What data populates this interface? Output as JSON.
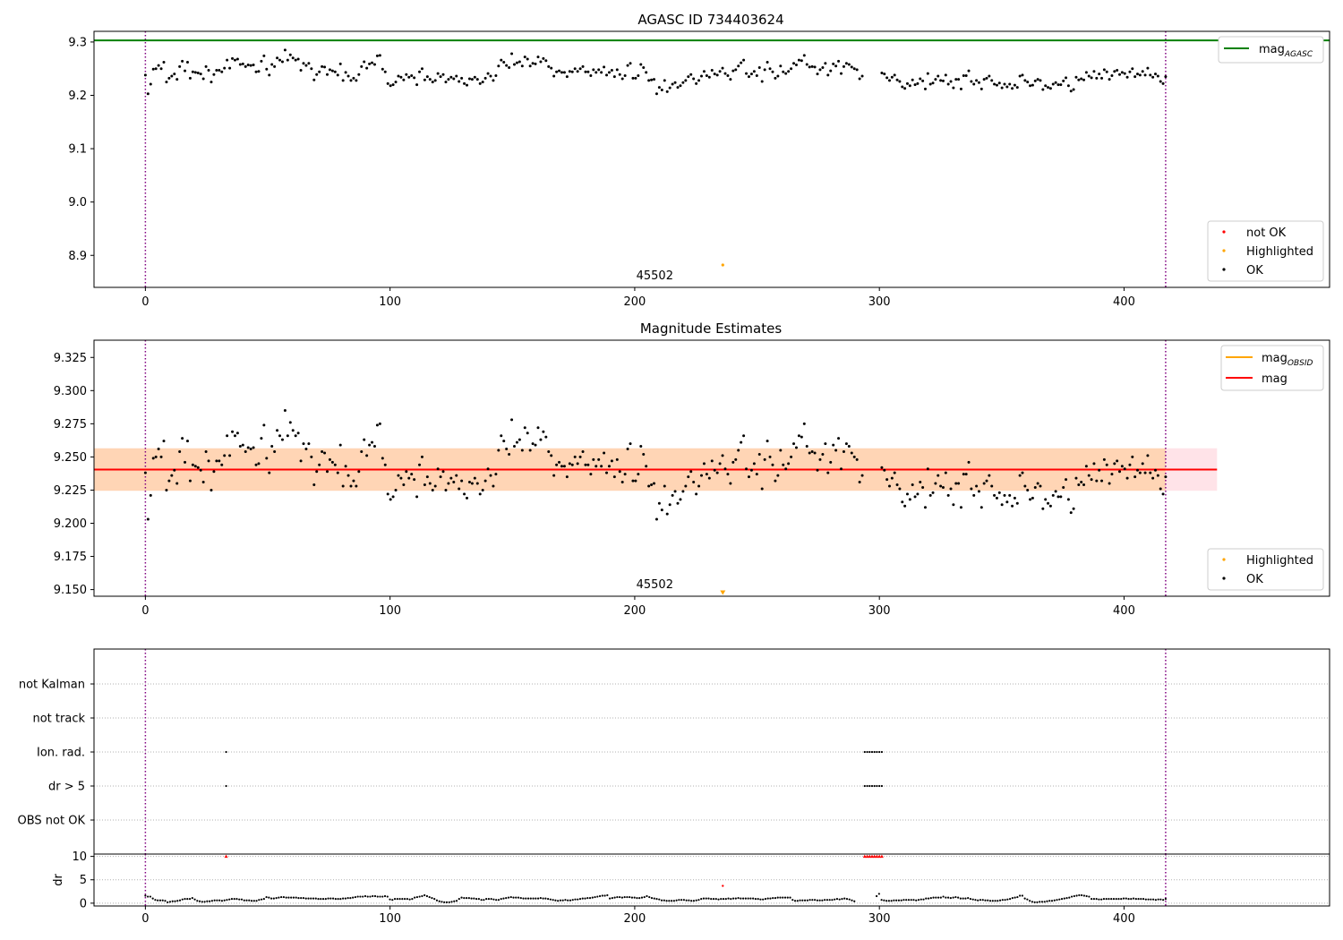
{
  "chart_data": [
    {
      "type": "scatter",
      "title": "AGASC ID 734403624",
      "xlim": [
        -21,
        484
      ],
      "ylim": [
        8.84,
        9.32
      ],
      "xticks": [
        "0",
        "100",
        "200",
        "300",
        "400"
      ],
      "yticks": [
        "8.9",
        "9.0",
        "9.1",
        "9.2",
        "9.3"
      ],
      "hlines": [
        {
          "name": "mag_AGASC",
          "y": 9.303,
          "color": "#008000"
        }
      ],
      "vlines": [
        0,
        417
      ],
      "vline_color": "#800080",
      "annotation": {
        "text": "45502",
        "x": 236
      },
      "highlighted_points": [
        {
          "x": 236,
          "y": 8.882
        }
      ],
      "legend_lines": [
        {
          "label": "mag",
          "sub": "AGASC",
          "color": "#008000"
        }
      ],
      "legend_points": [
        {
          "label": "not OK",
          "color": "#ff0000"
        },
        {
          "label": "Highlighted",
          "color": "#ffa500"
        },
        {
          "label": "OK",
          "color": "#000000"
        }
      ],
      "legend_placement": [
        "top-right",
        "bottom-right"
      ],
      "segments": [
        {
          "x_start": 0,
          "x_end": 293,
          "values": [
            9.238,
            9.203,
            9.221,
            9.249,
            9.25,
            9.256,
            9.25,
            9.262,
            9.225,
            9.232,
            9.236,
            9.24,
            9.23,
            9.254,
            9.264,
            9.246,
            9.262,
            9.232,
            9.244,
            9.243,
            9.242,
            9.24,
            9.231,
            9.254,
            9.247,
            9.225,
            9.239,
            9.247,
            9.247,
            9.244,
            9.251,
            9.266,
            9.251,
            9.269,
            9.266,
            9.268,
            9.258,
            9.259,
            9.254,
            9.257,
            9.256,
            9.257,
            9.244,
            9.245,
            9.264,
            9.274,
            9.249,
            9.238,
            9.258,
            9.254,
            9.27,
            9.266,
            9.263,
            9.285,
            9.266,
            9.276,
            9.27,
            9.266,
            9.268,
            9.247,
            9.26,
            9.256,
            9.26,
            9.25,
            9.229,
            9.239,
            9.244,
            9.254,
            9.253,
            9.239,
            9.248,
            9.246,
            9.244,
            9.238,
            9.259,
            9.228,
            9.243,
            9.236,
            9.228,
            9.232,
            9.228,
            9.239,
            9.254,
            9.263,
            9.251,
            9.259,
            9.261,
            9.258,
            9.274,
            9.275,
            9.249,
            9.244,
            9.222,
            9.218,
            9.22,
            9.225,
            9.236,
            9.234,
            9.229,
            9.239,
            9.234,
            9.237,
            9.233,
            9.22,
            9.244,
            9.25,
            9.229,
            9.235,
            9.23,
            9.225,
            9.228,
            9.241,
            9.235,
            9.239,
            9.225,
            9.23,
            9.234,
            9.231,
            9.236,
            9.226,
            9.232,
            9.222,
            9.219,
            9.231,
            9.23,
            9.234,
            9.23,
            9.222,
            9.225,
            9.232,
            9.241,
            9.236,
            9.228,
            9.237,
            9.255,
            9.266,
            9.262,
            9.256,
            9.252,
            9.278,
            9.258,
            9.261,
            9.263,
            9.255,
            9.272,
            9.268,
            9.255,
            9.26,
            9.259,
            9.272,
            9.263,
            9.269,
            9.265,
            9.254,
            9.251,
            9.236,
            9.244,
            9.246,
            9.243,
            9.243,
            9.235,
            9.245,
            9.244,
            9.25,
            9.245,
            9.25,
            9.254,
            9.244,
            9.244,
            9.237,
            9.248,
            9.243,
            9.248,
            9.243,
            9.253,
            9.238,
            9.243,
            9.247,
            9.235,
            9.248,
            9.239,
            9.231,
            9.237,
            9.256,
            9.26,
            9.232,
            9.232,
            9.237,
            9.258,
            9.252,
            9.243,
            9.228,
            9.229,
            9.23,
            9.203,
            9.215,
            9.21,
            9.228,
            9.207,
            9.214,
            9.221,
            9.224,
            9.215,
            9.218,
            9.224,
            9.228,
            9.235,
            9.239,
            9.231,
            9.222,
            9.228,
            9.236,
            9.245,
            9.237,
            9.234,
            9.247,
            9.24,
            9.238,
            9.245,
            9.251,
            9.241,
            9.237,
            9.23,
            9.246,
            9.248,
            9.255,
            9.261,
            9.266,
            9.241,
            9.235,
            9.24,
            9.245,
            9.237,
            9.252,
            9.226,
            9.248,
            9.262,
            9.25,
            9.244,
            9.232,
            9.236,
            9.255,
            9.244,
            9.241,
            9.245,
            9.25,
            9.26,
            9.257,
            9.266,
            9.265,
            9.275,
            9.258,
            9.253,
            9.254,
            9.253,
            9.24,
            9.248,
            9.252,
            9.26,
            9.238,
            9.246,
            9.259,
            9.255,
            9.264,
            9.241,
            9.254,
            9.26,
            9.258,
            9.253,
            9.25,
            9.248,
            9.231,
            9.236
          ]
        },
        {
          "x_start": 301,
          "x_end": 417,
          "values": [
            9.242,
            9.24,
            9.233,
            9.228,
            9.234,
            9.238,
            9.229,
            9.226,
            9.216,
            9.213,
            9.222,
            9.218,
            9.229,
            9.22,
            9.222,
            9.231,
            9.227,
            9.212,
            9.241,
            9.221,
            9.223,
            9.23,
            9.236,
            9.228,
            9.227,
            9.238,
            9.221,
            9.226,
            9.214,
            9.23,
            9.23,
            9.212,
            9.237,
            9.237,
            9.246,
            9.226,
            9.221,
            9.228,
            9.224,
            9.212,
            9.23,
            9.232,
            9.236,
            9.228,
            9.221,
            9.219,
            9.223,
            9.214,
            9.221,
            9.216,
            9.221,
            9.213,
            9.219,
            9.215,
            9.236,
            9.238,
            9.228,
            9.225,
            9.218,
            9.219,
            9.227,
            9.23,
            9.228,
            9.211,
            9.218,
            9.215,
            9.213,
            9.221,
            9.224,
            9.22,
            9.22,
            9.227,
            9.233,
            9.218,
            9.208,
            9.211,
            9.234,
            9.229,
            9.231,
            9.229,
            9.243,
            9.236,
            9.233,
            9.245,
            9.232,
            9.24,
            9.232,
            9.248,
            9.244,
            9.23,
            9.237,
            9.245,
            9.247,
            9.239,
            9.243,
            9.241,
            9.234,
            9.244,
            9.25,
            9.235,
            9.24,
            9.238,
            9.245,
            9.238,
            9.251,
            9.238,
            9.234,
            9.24,
            9.236,
            9.226,
            9.222,
            9.235
          ]
        }
      ]
    },
    {
      "type": "scatter",
      "title": "Magnitude Estimates",
      "xlim": [
        -21,
        484
      ],
      "ylim": [
        9.145,
        9.338
      ],
      "xticks": [
        "0",
        "100",
        "200",
        "300",
        "400"
      ],
      "yticks": [
        "9.150",
        "9.175",
        "9.200",
        "9.225",
        "9.250",
        "9.275",
        "9.300",
        "9.325"
      ],
      "hlines": [
        {
          "name": "mag",
          "y": 9.2405,
          "color": "#ff0000",
          "x_end": 438
        }
      ],
      "bands": [
        {
          "y_low": 9.2245,
          "y_high": 9.2565,
          "x_end": 438,
          "color": "#ffc0cb"
        },
        {
          "y_low": 9.2245,
          "y_high": 9.2565,
          "x_end": 417,
          "color": "#ffa500"
        }
      ],
      "vlines": [
        0,
        417
      ],
      "vline_color": "#800080",
      "annotation": {
        "text": "45502",
        "x": 236
      },
      "highlighted_points": [
        {
          "x": 236,
          "y": 9.148
        }
      ],
      "legend_lines": [
        {
          "label": "mag",
          "sub": "OBSID",
          "color": "#ffa500"
        },
        {
          "label": "mag",
          "sub": "",
          "color": "#ff0000"
        }
      ],
      "legend_points": [
        {
          "label": "Highlighted",
          "color": "#ffa500"
        },
        {
          "label": "OK",
          "color": "#000000"
        }
      ],
      "legend_placement": [
        "top-right",
        "bottom-right"
      ],
      "same_points_as_panel": 0
    },
    {
      "type": "scatter",
      "xlim": [
        -21,
        484
      ],
      "flag_rows": [
        "not Kalman",
        "not track",
        "Ion. rad.",
        "dr > 5",
        "OBS not OK"
      ],
      "flags": [
        {
          "row": "Ion. rad.",
          "x": [
            33,
            294,
            295,
            296,
            297,
            298,
            299,
            300,
            301
          ]
        },
        {
          "row": "dr > 5",
          "x": [
            33,
            294,
            295,
            296,
            297,
            298,
            299,
            300,
            301
          ]
        }
      ],
      "vlines": [
        0,
        417
      ],
      "vline_color": "#800080"
    },
    {
      "type": "scatter",
      "ylabel": "dr",
      "xlim": [
        -21,
        484
      ],
      "ylim": [
        -0.6,
        10.5
      ],
      "xticks": [
        "0",
        "100",
        "200",
        "300",
        "400"
      ],
      "yticks": [
        "0",
        "5",
        "10"
      ],
      "clipped_at": 10,
      "clipped_points_x": [
        33,
        294,
        295,
        296,
        297,
        298,
        299,
        300,
        301
      ],
      "not_ok_points": [
        {
          "x": 236,
          "y": 3.7
        }
      ],
      "vlines": [
        0,
        417
      ],
      "vline_color": "#800080",
      "dr_values": [
        1.6,
        1.4,
        1.4,
        1.0,
        0.7,
        0.6,
        0.6,
        0.6,
        0.5,
        0.2,
        0.3,
        0.4,
        0.4,
        0.5,
        0.6,
        0.8,
        0.9,
        0.9,
        0.9,
        1.1,
        0.8,
        0.5,
        0.4,
        0.3,
        0.3,
        0.4,
        0.4,
        0.5,
        0.6,
        0.6,
        0.6,
        0.5,
        0.6,
        0.7,
        0.8,
        0.9,
        0.9,
        0.9,
        0.8,
        0.8,
        0.6,
        0.6,
        0.6,
        0.5,
        0.5,
        0.5,
        0.7,
        0.8,
        0.9,
        1.3,
        1.2,
        1.0,
        1.0,
        1.1,
        1.2,
        1.3,
        1.3,
        1.2,
        1.2,
        1.2,
        1.2,
        1.2,
        1.1,
        1.1,
        1.1,
        1.0,
        1.0,
        1.0,
        1.0,
        1.0,
        0.9,
        0.9,
        0.9,
        0.9,
        1.0,
        1.0,
        1.0,
        0.9,
        0.9,
        0.9,
        1.0,
        1.0,
        1.1,
        1.1,
        1.2,
        1.3,
        1.4,
        1.4,
        1.4,
        1.5,
        1.4,
        1.4,
        1.5,
        1.5,
        1.4,
        1.4,
        1.4,
        1.5,
        1.4,
        0.8,
        0.7,
        0.9,
        0.9,
        0.9,
        0.9,
        0.9,
        0.9,
        0.8,
        0.9,
        1.2,
        1.3,
        1.4,
        1.5,
        1.7,
        1.5,
        1.3,
        1.1,
        0.9,
        0.6,
        0.4,
        0.3,
        0.2,
        0.2,
        0.2,
        0.3,
        0.4,
        0.5,
        0.9,
        1.2,
        1.1,
        1.1,
        1.1,
        1.0,
        1.0,
        0.9,
        0.9,
        0.7,
        0.7,
        0.9,
        0.9,
        0.9,
        0.8,
        0.7,
        0.7,
        0.9,
        1.0,
        1.1,
        1.2,
        1.3,
        1.2,
        1.2,
        1.2,
        1.1,
        1.0,
        1.0,
        1.0,
        1.0,
        1.0,
        1.0,
        1.0,
        1.1,
        1.0,
        1.0,
        0.9,
        0.8,
        0.7,
        0.6,
        0.5,
        0.6,
        0.6,
        0.7,
        0.6,
        0.6,
        0.7,
        0.8,
        0.8,
        0.9,
        1.0,
        1.0,
        1.1,
        1.1,
        1.2,
        1.3,
        1.4,
        1.5,
        1.6,
        1.6,
        1.7,
        1.0,
        1.1,
        1.2,
        1.3,
        1.3,
        1.2,
        1.3,
        1.3,
        1.3,
        1.2,
        1.2,
        1.1,
        1.1,
        1.2,
        1.3,
        1.5,
        1.3,
        1.1,
        1.0,
        0.9,
        0.8,
        0.6,
        0.6,
        0.5,
        0.5,
        0.5,
        0.5,
        0.6,
        0.7,
        0.7,
        0.7,
        0.6,
        0.6,
        0.5,
        0.5,
        0.6,
        0.7,
        0.9,
        1.0,
        1.0,
        1.0,
        0.9,
        0.9,
        0.9,
        0.8,
        0.9,
        0.9,
        0.9,
        1.0,
        0.9,
        1.0,
        1.0,
        1.1,
        1.0,
        1.0,
        1.0,
        1.0,
        1.0,
        1.0,
        0.9,
        0.9,
        0.8,
        0.8,
        0.9,
        1.0,
        1.0,
        1.1,
        1.1,
        1.2,
        1.2,
        1.2,
        1.2,
        1.2,
        1.2,
        0.7,
        0.5,
        0.5,
        0.6,
        0.6,
        0.6,
        0.6,
        0.7,
        0.7,
        0.7,
        0.6,
        0.6,
        0.6,
        0.7,
        0.7,
        0.7,
        0.7,
        0.8,
        0.9,
        0.8,
        0.9,
        1.0,
        0.9,
        0.8,
        0.6,
        0.4,
        10,
        10,
        10,
        10,
        10,
        10,
        10,
        10,
        1.5,
        2.0,
        0.7,
        0.6,
        0.5,
        0.5,
        0.5,
        0.6,
        0.6,
        0.6,
        0.6,
        0.7,
        0.7,
        0.7,
        0.7,
        0.7,
        0.6,
        0.7,
        0.8,
        0.8,
        1.0,
        1.0,
        1.1,
        1.2,
        1.2,
        1.2,
        1.2,
        1.4,
        1.2,
        1.2,
        1.1,
        1.2,
        1.3,
        1.2,
        1.0,
        1.0,
        1.0,
        1.1,
        0.9,
        0.8,
        0.7,
        0.6,
        0.7,
        0.7,
        0.6,
        0.6,
        0.5,
        0.5,
        0.5,
        0.5,
        0.6,
        0.7,
        0.7,
        0.8,
        0.9,
        1.1,
        1.2,
        1.3,
        1.6,
        1.6,
        1.0,
        0.8,
        0.5,
        0.3,
        0.2,
        0.2,
        0.3,
        0.3,
        0.3,
        0.4,
        0.5,
        0.5,
        0.6,
        0.7,
        0.8,
        0.9,
        1.0,
        1.1,
        1.2,
        1.4,
        1.5,
        1.6,
        1.7,
        1.7,
        1.6,
        1.5,
        1.4,
        0.9,
        0.9,
        0.9,
        0.8,
        0.8,
        0.9,
        0.9,
        0.9,
        0.9,
        0.9,
        0.9,
        0.9,
        0.9,
        1.0,
        1.0,
        0.9,
        0.9,
        1.0,
        0.9,
        0.9,
        0.9,
        0.9,
        0.8,
        0.8,
        0.8,
        0.8,
        0.7,
        0.8,
        0.8,
        0.7,
        0.9
      ]
    }
  ]
}
